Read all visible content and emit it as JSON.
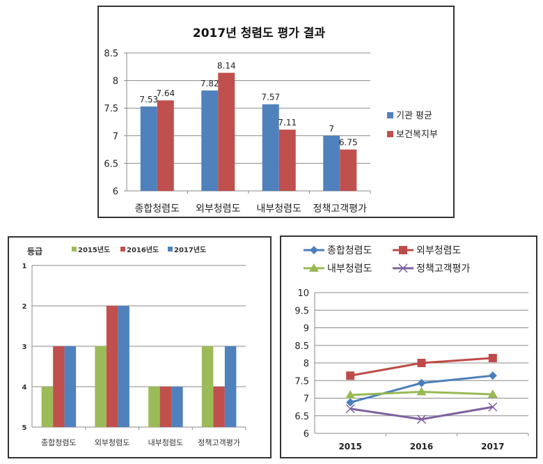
{
  "chart_data": [
    {
      "type": "bar",
      "title": "2017년 청렴도 평가 결과",
      "categories": [
        "종합청렴도",
        "외부청렴도",
        "내부청렴도",
        "정책고객평가"
      ],
      "series": [
        {
          "name": "기관 평균",
          "color": "#4f81bd",
          "values": [
            7.53,
            7.82,
            7.57,
            7.0
          ],
          "labels": [
            "7.53",
            "7.82",
            "7.57",
            "7"
          ]
        },
        {
          "name": "보건복지부",
          "color": "#c0504d",
          "values": [
            7.64,
            8.14,
            7.11,
            6.75
          ],
          "labels": [
            "7.64",
            "8.14",
            "7.11",
            "6.75"
          ]
        }
      ],
      "ylim": [
        6,
        8.5
      ],
      "yticks": [
        "6",
        "6.5",
        "7",
        "7.5",
        "8",
        "8.5"
      ],
      "ytick_values": [
        6,
        6.5,
        7,
        7.5,
        8,
        8.5
      ],
      "grid": true,
      "legend": "right"
    },
    {
      "type": "bar",
      "title": "",
      "ylabel": "등급",
      "categories": [
        "종합청렴도",
        "외부청렴도",
        "내부청렴도",
        "정책고객평가"
      ],
      "series": [
        {
          "name": "2015년도",
          "color": "#9bbb59",
          "values": [
            4,
            3,
            4,
            3
          ]
        },
        {
          "name": "2016년도",
          "color": "#c0504d",
          "values": [
            3,
            2,
            4,
            4
          ]
        },
        {
          "name": "2017년도",
          "color": "#4f81bd",
          "values": [
            3,
            2,
            4,
            3
          ]
        }
      ],
      "ylim": [
        1,
        5
      ],
      "y_inverted": true,
      "yticks": [
        "1",
        "2",
        "3",
        "4",
        "5"
      ],
      "ytick_values": [
        1,
        2,
        3,
        4,
        5
      ],
      "grid": true,
      "legend": "top"
    },
    {
      "type": "line",
      "title": "",
      "x": [
        "2015",
        "2016",
        "2017"
      ],
      "series": [
        {
          "name": "종합청렴도",
          "color": "#4a7ebb",
          "marker": "diamond",
          "values": [
            6.88,
            7.43,
            7.64
          ]
        },
        {
          "name": "외부청렴도",
          "color": "#be4b48",
          "marker": "square",
          "values": [
            7.64,
            8.0,
            8.14
          ]
        },
        {
          "name": "내부청렴도",
          "color": "#98b954",
          "marker": "triangle",
          "values": [
            7.09,
            7.18,
            7.11
          ]
        },
        {
          "name": "정책고객평가",
          "color": "#7d60a0",
          "marker": "x",
          "values": [
            6.7,
            6.4,
            6.75
          ]
        }
      ],
      "ylim": [
        6,
        10
      ],
      "yticks": [
        "6",
        "6.5",
        "7",
        "7.5",
        "8",
        "8.5",
        "9",
        "9.5",
        "10"
      ],
      "ytick_values": [
        6,
        6.5,
        7,
        7.5,
        8,
        8.5,
        9,
        9.5,
        10
      ],
      "grid": true,
      "legend": "top"
    }
  ]
}
